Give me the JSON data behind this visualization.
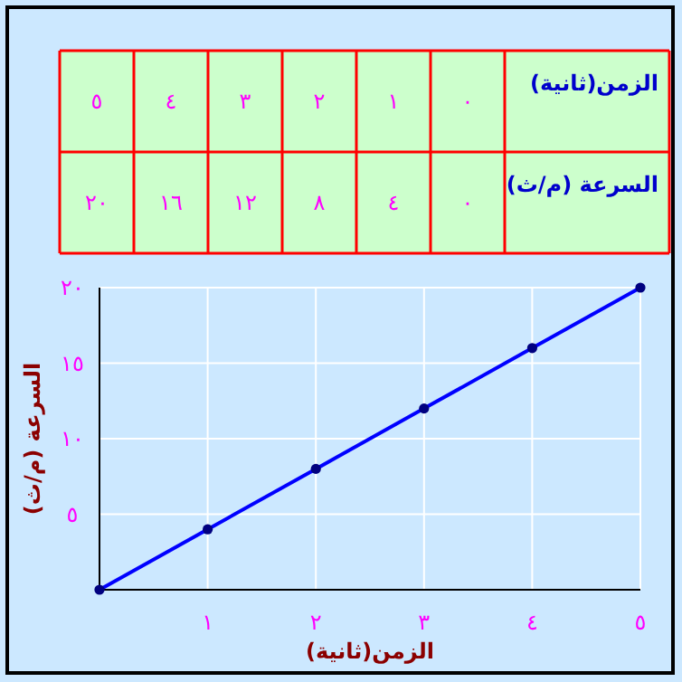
{
  "chart_data": {
    "type": "line",
    "xlabel": "الزمن(ثانية)",
    "ylabel": "السرعة (م/ث)",
    "annotations": [
      "الزمن(ثانية)",
      "٥",
      "٤",
      "٣",
      "٢",
      "١",
      "٠",
      "السرعة (م/ث)",
      "٢٠",
      "١٦",
      "١٢",
      "٨",
      "٤",
      "٠"
    ],
    "x": [
      0,
      1,
      2,
      3,
      4,
      5
    ],
    "series": [
      {
        "color": "#0000ff",
        "values": [
          0,
          4,
          8,
          12,
          16,
          20
        ]
      }
    ],
    "xlim": [
      0,
      5
    ],
    "ylim": [
      0,
      20
    ],
    "xticks": [
      {
        "value": 0,
        "label": null
      },
      {
        "value": 1,
        "label": "١"
      },
      {
        "value": 2,
        "label": "٢"
      },
      {
        "value": 3,
        "label": "٣"
      },
      {
        "value": 4,
        "label": "٤"
      },
      {
        "value": 5,
        "label": "٥"
      }
    ],
    "yticks": [
      {
        "value": 0,
        "label": null
      },
      {
        "value": 5,
        "label": "٥"
      },
      {
        "value": 10,
        "label": "١٠"
      },
      {
        "value": 15,
        "label": "١٥"
      },
      {
        "value": 20,
        "label": "٢٠"
      }
    ],
    "grid": true,
    "marker": "circle",
    "line_style": "solid"
  }
}
